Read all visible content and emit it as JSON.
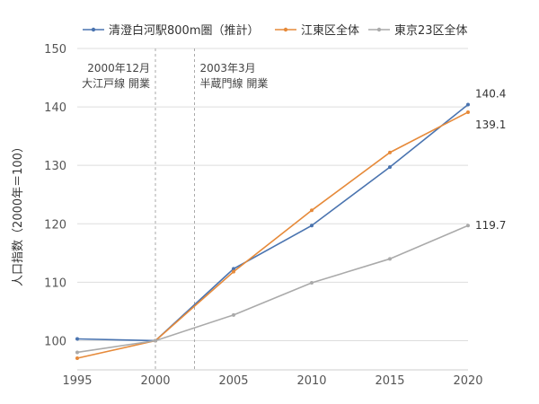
{
  "chart_data": {
    "type": "line",
    "title": "",
    "xlabel": "",
    "ylabel": "人口指数（2000年＝100）",
    "x": [
      1995,
      2000,
      2005,
      2010,
      2015,
      2020
    ],
    "x_ticks": [
      "1995",
      "2000",
      "2005",
      "2010",
      "2015",
      "2020"
    ],
    "y_ticks": [
      "100",
      "110",
      "120",
      "130",
      "140",
      "150"
    ],
    "ylim": [
      95,
      150
    ],
    "grid": "horizontal",
    "legend_position": "top",
    "series": [
      {
        "name": "清澄白河駅800m圏（推計）",
        "color": "#4a74b0",
        "values": [
          100.3,
          100,
          112.3,
          119.7,
          129.7,
          140.4
        ],
        "end_label": "140.4"
      },
      {
        "name": "江東区全体",
        "color": "#e68a3a",
        "values": [
          97,
          100,
          111.8,
          122.3,
          132.2,
          139.1
        ],
        "end_label": "139.1"
      },
      {
        "name": "東京23区全体",
        "color": "#aaaaaa",
        "values": [
          98,
          100,
          104.4,
          109.9,
          114,
          119.7
        ],
        "end_label": "119.7"
      }
    ],
    "annotations": [
      {
        "x": 2000,
        "lines": [
          "2000年12月",
          "大江戸線 開業"
        ]
      },
      {
        "x": 2002.5,
        "lines": [
          "2003年3月",
          "半蔵門線 開業"
        ]
      }
    ]
  }
}
